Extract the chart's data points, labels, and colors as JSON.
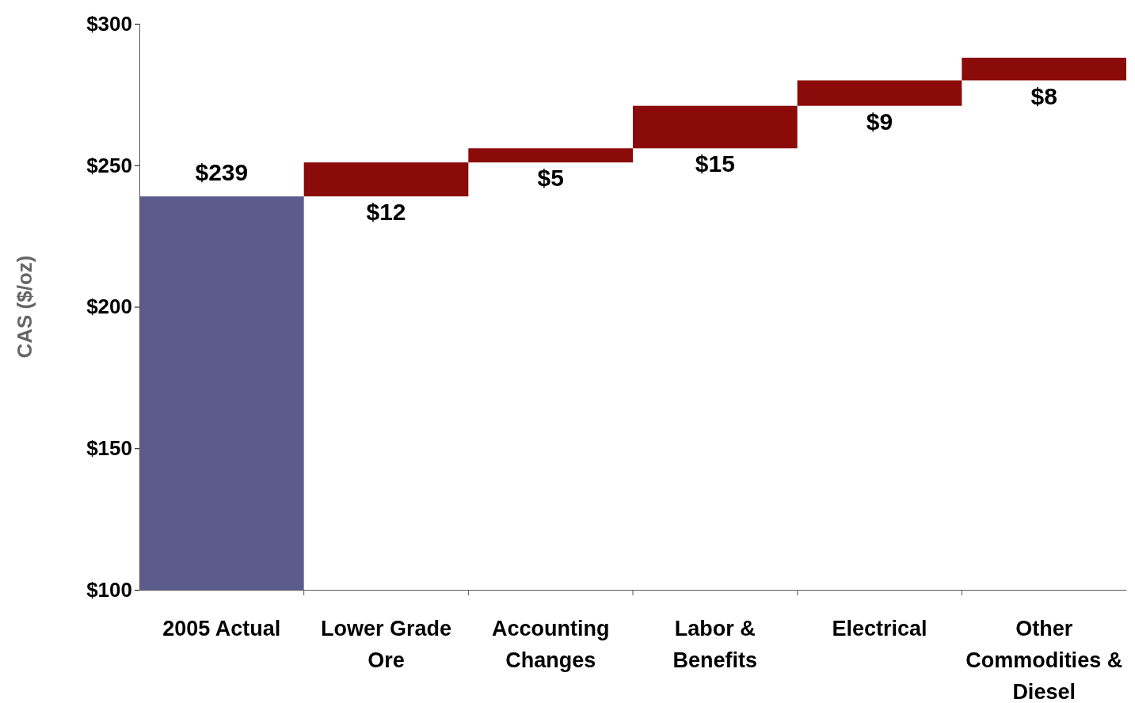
{
  "chart_data": {
    "type": "bar",
    "ylabel": "CAS ($/oz)",
    "categories": [
      "2005 Actual",
      "Lower Grade Ore",
      "Accounting Changes",
      "Labor & Benefits",
      "Electrical",
      "Other Commodities & Diesel"
    ],
    "values": [
      239,
      12,
      5,
      15,
      9,
      8
    ],
    "base": [
      null,
      239,
      251,
      256,
      271,
      280
    ],
    "colors": [
      "#5c5c8c",
      "#8b0a0a",
      "#8b0a0a",
      "#8b0a0a",
      "#8b0a0a",
      "#8b0a0a"
    ],
    "value_labels": [
      "$239",
      "$12",
      "$5",
      "$15",
      "$9",
      "$8"
    ],
    "ylim": [
      100,
      300
    ],
    "yticks": [
      {
        "value": 100,
        "label": "$100"
      },
      {
        "value": 150,
        "label": "$150"
      },
      {
        "value": 200,
        "label": "$200"
      },
      {
        "value": 250,
        "label": "$250"
      },
      {
        "value": 300,
        "label": "$300"
      }
    ],
    "grid": false
  }
}
